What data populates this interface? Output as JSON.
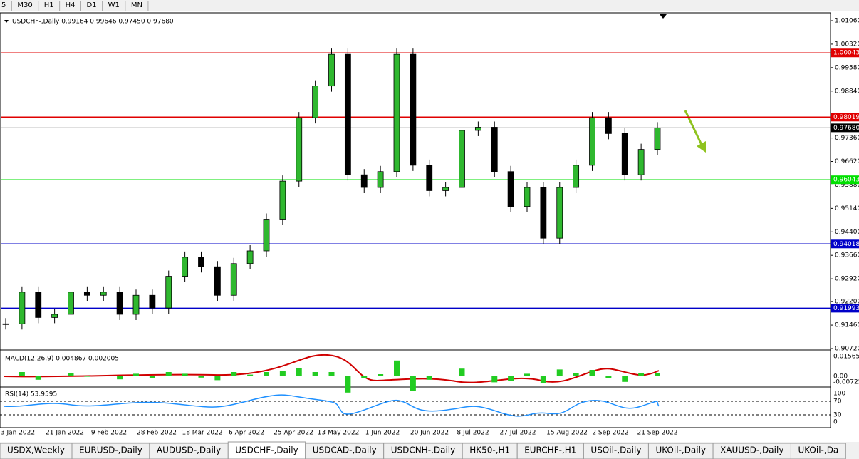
{
  "toolbar": {
    "timeframes": [
      "5",
      "M30",
      "H1",
      "H4",
      "D1",
      "W1",
      "MN"
    ]
  },
  "chart": {
    "symbol_info": "USDCHF-,Daily  0.99164 0.99646 0.97450 0.97680",
    "price_ticks": [
      {
        "value": 1.0106,
        "label": "1.01060"
      },
      {
        "value": 1.0032,
        "label": "1.00320"
      },
      {
        "value": 0.9958,
        "label": "0.99580"
      },
      {
        "value": 0.9884,
        "label": "0.98840"
      },
      {
        "value": 0.9736,
        "label": "0.97360"
      },
      {
        "value": 0.9662,
        "label": "0.96620"
      },
      {
        "value": 0.9588,
        "label": "0.95880"
      },
      {
        "value": 0.9514,
        "label": "0.95140"
      },
      {
        "value": 0.944,
        "label": "0.94400"
      },
      {
        "value": 0.9366,
        "label": "0.93660"
      },
      {
        "value": 0.9292,
        "label": "0.92920"
      },
      {
        "value": 0.922,
        "label": "0.92200"
      },
      {
        "value": 0.9146,
        "label": "0.91460"
      },
      {
        "value": 0.9072,
        "label": "0.90720"
      }
    ],
    "levels": [
      {
        "value": 1.00043,
        "label": "1.00043",
        "color": "#e00000"
      },
      {
        "value": 0.98019,
        "label": "0.98019",
        "color": "#e00000"
      },
      {
        "value": 0.9768,
        "label": "0.97680",
        "color": "#000000"
      },
      {
        "value": 0.96043,
        "label": "0.96043",
        "color": "#00e000"
      },
      {
        "value": 0.94018,
        "label": "0.94018",
        "color": "#0000c8"
      },
      {
        "value": 0.91993,
        "label": "0.91993",
        "color": "#0000c8"
      }
    ],
    "closes": [
      0.915,
      0.925,
      0.917,
      0.918,
      0.925,
      0.924,
      0.925,
      0.918,
      0.924,
      0.92,
      0.93,
      0.936,
      0.933,
      0.924,
      0.934,
      0.938,
      0.948,
      0.96,
      0.98,
      0.99,
      1.0,
      0.962,
      0.958,
      0.963,
      1.0,
      0.965,
      0.957,
      0.958,
      0.976,
      0.977,
      0.963,
      0.952,
      0.958,
      0.942,
      0.958,
      0.965,
      0.98,
      0.975,
      0.962,
      0.97,
      0.9768
    ],
    "dates": [
      "3 Jan 2022",
      "21 Jan 2022",
      "9 Feb 2022",
      "28 Feb 2022",
      "18 Mar 2022",
      "6 Apr 2022",
      "25 Apr 2022",
      "13 May 2022",
      "1 Jun 2022",
      "20 Jun 2022",
      "8 Jul 2022",
      "27 Jul 2022",
      "15 Aug 2022",
      "2 Sep 2022",
      "21 Sep 2022"
    ],
    "macd": {
      "label": "MACD(12,26,9) 0.004867 0.002005",
      "ticks": [
        "0.015654",
        "0.00",
        "-0.00725"
      ]
    },
    "rsi": {
      "label": "RSI(14) 53.9595",
      "ticks": [
        "100",
        "70",
        "30",
        "0"
      ]
    }
  },
  "tabs": [
    "USDX,Weekly",
    "EURUSD-,Daily",
    "AUDUSD-,Daily",
    "USDCHF-,Daily",
    "USDCAD-,Daily",
    "USDCNH-,Daily",
    "HK50-,H1",
    "EURCHF-,H1",
    "USOil-,Daily",
    "UKOil-,Daily",
    "XAUUSD-,Daily",
    "UKOil-,Da"
  ],
  "active_tab": 3
}
